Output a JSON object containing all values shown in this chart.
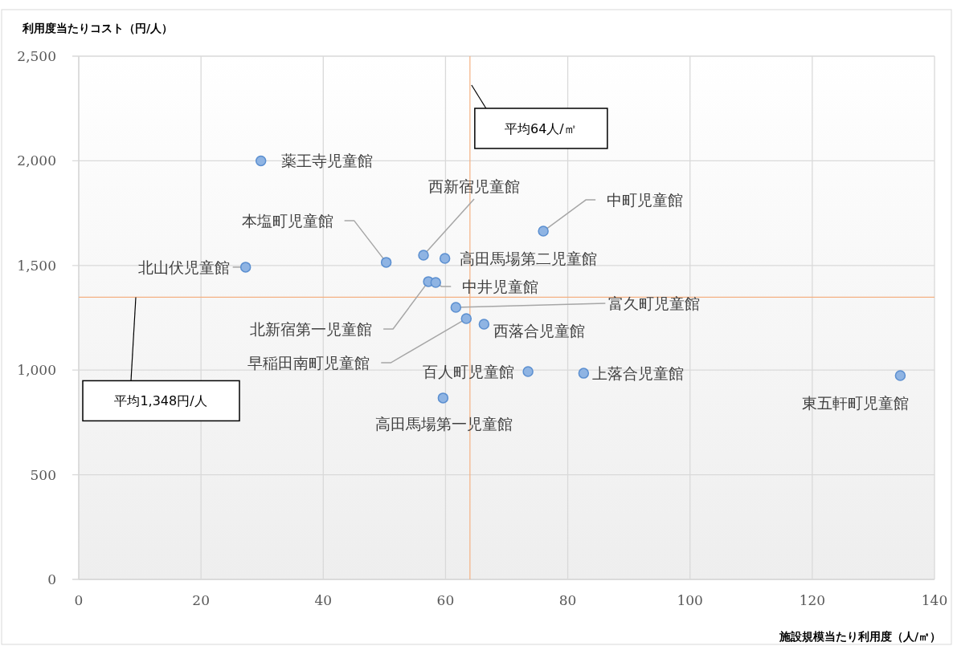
{
  "chart_data": {
    "type": "scatter",
    "xlabel": "施設規模当たり利用度（人/㎡）",
    "ylabel": "利用度当たりコスト（円/人）",
    "xlim": [
      0,
      140
    ],
    "xticks": [
      0,
      20,
      40,
      60,
      80,
      100,
      120,
      140
    ],
    "ylim": [
      0,
      2500
    ],
    "yticks": [
      0,
      {
        "value": 500,
        "label": "500"
      },
      {
        "value": 1000,
        "label": "1,000"
      },
      {
        "value": 1500,
        "label": "1,500"
      },
      {
        "value": 2000,
        "label": "2,000"
      },
      {
        "value": 2500,
        "label": "2,500"
      }
    ],
    "grid": true,
    "marker": "circle",
    "series": [
      {
        "color": "#8fb4e3",
        "x": [
          29.8,
          27.3,
          50.3,
          56.4,
          59.9,
          76.0,
          57.2,
          58.4,
          61.7,
          63.4,
          66.3,
          73.5,
          82.6,
          134.4,
          59.6
        ],
        "values": [
          2000,
          1492,
          1515,
          1549,
          1534,
          1664,
          1423,
          1419,
          1300,
          1246,
          1219,
          993,
          985,
          974,
          867
        ]
      }
    ],
    "ref_lines": [
      {
        "axis": "x",
        "value": 64,
        "label": "平均64人/㎡",
        "color": "#f4b183"
      },
      {
        "axis": "y",
        "value": 1348,
        "label": "平均1,348円/人",
        "color": "#f4b183"
      }
    ],
    "annotations": [
      {
        "text": "薬王寺児童館",
        "x": 29.8,
        "y": 2000
      },
      {
        "text": "北山伏児童館",
        "x": 27.3,
        "y": 1492
      },
      {
        "text": "本塩町児童館",
        "x": 50.3,
        "y": 1515
      },
      {
        "text": "西新宿児童館",
        "x": 56.4,
        "y": 1549
      },
      {
        "text": "高田馬場第二児童館",
        "x": 59.9,
        "y": 1534
      },
      {
        "text": "中町児童館",
        "x": 76.0,
        "y": 1664
      },
      {
        "text": "北新宿第一児童館",
        "x": 57.2,
        "y": 1423
      },
      {
        "text": "中井児童館",
        "x": 58.4,
        "y": 1419
      },
      {
        "text": "富久町児童館",
        "x": 61.7,
        "y": 1300
      },
      {
        "text": "早稲田南町児童館",
        "x": 63.4,
        "y": 1246
      },
      {
        "text": "西落合児童館",
        "x": 66.3,
        "y": 1219
      },
      {
        "text": "百人町児童館",
        "x": 73.5,
        "y": 993
      },
      {
        "text": "上落合児童館",
        "x": 82.6,
        "y": 985
      },
      {
        "text": "東五軒町児童館",
        "x": 134.4,
        "y": 974
      },
      {
        "text": "高田馬場第一児童館",
        "x": 59.6,
        "y": 867
      }
    ]
  }
}
